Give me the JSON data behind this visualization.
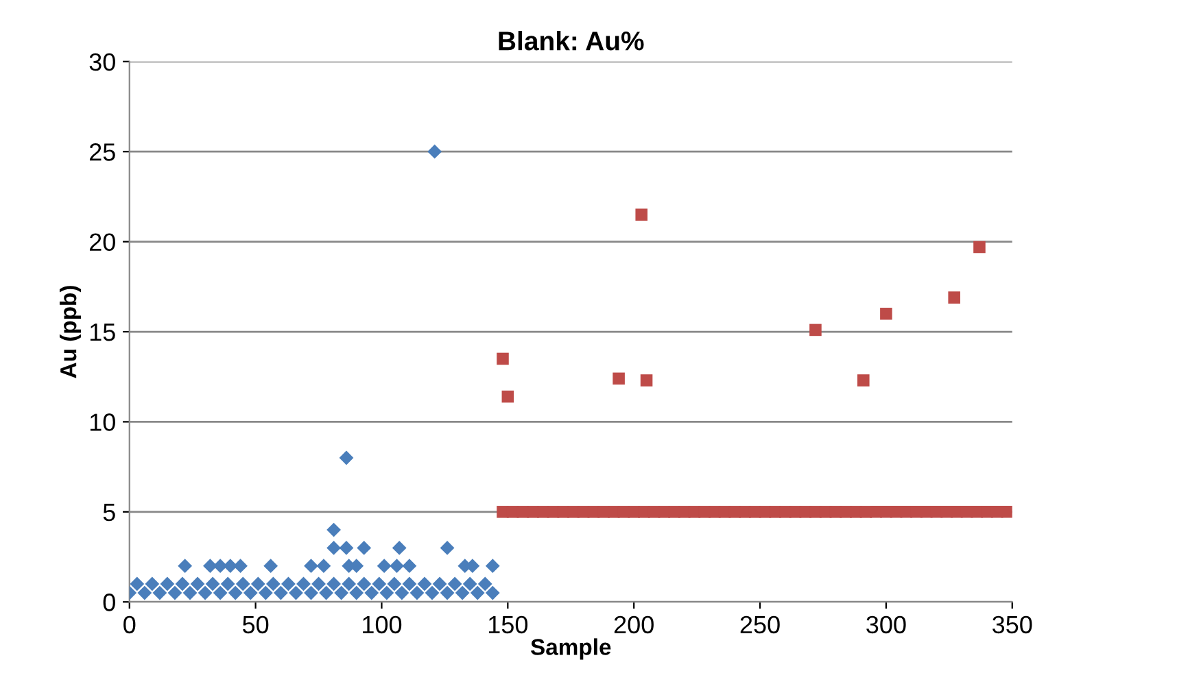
{
  "chart_data": {
    "type": "scatter",
    "title": "Blank: Au%",
    "xlabel": "Sample",
    "ylabel": "Au (ppb)",
    "xlim": [
      0,
      350
    ],
    "xticks": [
      0,
      50,
      100,
      150,
      200,
      250,
      300,
      350
    ],
    "ylim": [
      0,
      30
    ],
    "yticks": [
      0,
      5,
      10,
      15,
      20,
      25,
      30
    ],
    "grid": "y",
    "series": [
      {
        "color": "#4a7ebb",
        "marker": "diamond",
        "x": [
          0,
          3,
          6,
          9,
          12,
          15,
          18,
          21,
          24,
          27,
          30,
          33,
          36,
          39,
          42,
          45,
          48,
          51,
          54,
          57,
          60,
          63,
          66,
          69,
          72,
          75,
          78,
          81,
          84,
          87,
          90,
          93,
          96,
          99,
          102,
          105,
          108,
          111,
          114,
          117,
          120,
          123,
          126,
          129,
          132,
          135,
          138,
          141,
          144,
          22,
          32,
          36,
          40,
          44,
          56,
          72,
          77,
          87,
          90,
          101,
          106,
          111,
          133,
          136,
          144,
          81,
          86,
          93,
          107,
          126,
          81,
          86,
          121
        ],
        "values": [
          0.5,
          1,
          0.5,
          1,
          0.5,
          1,
          0.5,
          1,
          0.5,
          1,
          0.5,
          1,
          0.5,
          1,
          0.5,
          1,
          0.5,
          1,
          0.5,
          1,
          0.5,
          1,
          0.5,
          1,
          0.5,
          1,
          0.5,
          1,
          0.5,
          1,
          0.5,
          1,
          0.5,
          1,
          0.5,
          1,
          0.5,
          1,
          0.5,
          1,
          0.5,
          1,
          0.5,
          1,
          0.5,
          1,
          0.5,
          1,
          0.5,
          2,
          2,
          2,
          2,
          2,
          2,
          2,
          2,
          2,
          2,
          2,
          2,
          2,
          2,
          2,
          2,
          3,
          3,
          3,
          3,
          3,
          4,
          8,
          25
        ]
      },
      {
        "color": "#be4b48",
        "marker": "square",
        "x": [
          148,
          152,
          156,
          160,
          164,
          168,
          172,
          176,
          180,
          184,
          188,
          192,
          196,
          200,
          204,
          208,
          212,
          216,
          220,
          224,
          228,
          232,
          236,
          240,
          244,
          248,
          252,
          256,
          260,
          264,
          268,
          272,
          276,
          280,
          284,
          288,
          292,
          296,
          300,
          304,
          308,
          312,
          316,
          320,
          324,
          328,
          332,
          336,
          340,
          344,
          348,
          148,
          150,
          194,
          203,
          205,
          272,
          291,
          300,
          327,
          337
        ],
        "values": [
          5,
          5,
          5,
          5,
          5,
          5,
          5,
          5,
          5,
          5,
          5,
          5,
          5,
          5,
          5,
          5,
          5,
          5,
          5,
          5,
          5,
          5,
          5,
          5,
          5,
          5,
          5,
          5,
          5,
          5,
          5,
          5,
          5,
          5,
          5,
          5,
          5,
          5,
          5,
          5,
          5,
          5,
          5,
          5,
          5,
          5,
          5,
          5,
          5,
          5,
          5,
          13.5,
          11.4,
          12.4,
          21.5,
          12.3,
          15.1,
          12.3,
          16,
          16.9,
          19.7
        ]
      }
    ]
  }
}
